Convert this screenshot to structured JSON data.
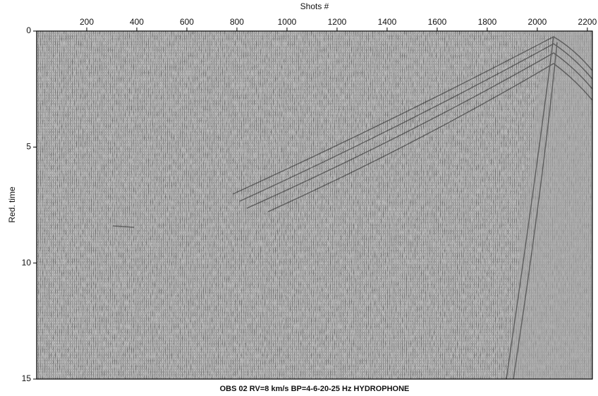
{
  "chart_data": {
    "type": "seismic-section",
    "title": "OBS 02 RV=8 km/s BP=4-6-20-25 Hz HYDROPHONE",
    "x_label": "Shots #",
    "y_label": "Red. time",
    "xlim": [
      0,
      2220
    ],
    "xticks": [
      200,
      400,
      600,
      800,
      1000,
      1200,
      1400,
      1600,
      1800,
      2000,
      2200
    ],
    "ylim": [
      0,
      15
    ],
    "yticks": [
      0,
      5,
      10,
      15
    ],
    "y_inverted": true
  }
}
